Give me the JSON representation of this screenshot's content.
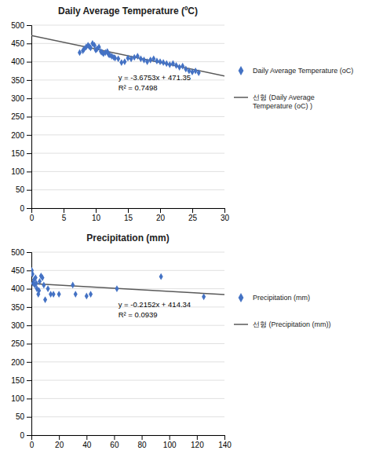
{
  "chart_data": [
    {
      "type": "scatter",
      "title": "Daily Average Temperature (ºC)",
      "xlim": [
        0,
        30
      ],
      "ylim": [
        0,
        500
      ],
      "xticks": [
        0,
        5,
        10,
        15,
        20,
        25,
        30
      ],
      "yticks": [
        0,
        50,
        100,
        150,
        200,
        250,
        300,
        350,
        400,
        450,
        500
      ],
      "grid": "y",
      "legend": "right",
      "annotations": [
        "y = -3.6753x + 471.35",
        "R² = 0.7498"
      ],
      "series": [
        {
          "name": "Daily Average Temperature (oC)",
          "type": "scatter",
          "marker": "diamond",
          "color": "#4472C4",
          "x": [
            7.5,
            8.0,
            8.2,
            8.5,
            8.8,
            9.0,
            9.2,
            9.5,
            9.8,
            10.0,
            10.2,
            10.5,
            10.8,
            11.0,
            11.2,
            11.5,
            11.8,
            12.0,
            12.2,
            12.5,
            12.8,
            13.0,
            13.5,
            14.0,
            14.5,
            15.0,
            15.5,
            16.0,
            16.5,
            17.0,
            17.5,
            18.0,
            18.5,
            19.0,
            19.5,
            20.0,
            20.5,
            21.0,
            21.5,
            22.0,
            22.5,
            23.0,
            23.5,
            24.0,
            24.5,
            25.0,
            25.5,
            26.0
          ],
          "values": [
            425,
            430,
            435,
            440,
            445,
            442,
            438,
            450,
            445,
            432,
            435,
            440,
            428,
            425,
            422,
            425,
            428,
            420,
            418,
            415,
            412,
            410,
            408,
            398,
            400,
            410,
            408,
            412,
            415,
            408,
            405,
            400,
            405,
            408,
            402,
            400,
            398,
            395,
            392,
            395,
            390,
            385,
            388,
            380,
            375,
            372,
            375,
            370
          ]
        },
        {
          "name": "선형 (Daily Average\nTemperature (oC) )",
          "type": "line",
          "line_style": "solid",
          "color": "#595959",
          "x": [
            0,
            30
          ],
          "values": [
            471.35,
            361.091
          ]
        }
      ]
    },
    {
      "type": "scatter",
      "title": "Precipitation (mm)",
      "xlim": [
        0,
        140
      ],
      "ylim": [
        0,
        500
      ],
      "xticks": [
        0,
        20,
        40,
        60,
        80,
        100,
        120,
        140
      ],
      "yticks": [
        0,
        50,
        100,
        150,
        200,
        250,
        300,
        350,
        400,
        450,
        500
      ],
      "grid": "y",
      "legend": "right",
      "annotations": [
        "y = -0.2152x + 414.34",
        "R² = 0.0939"
      ],
      "series": [
        {
          "name": "Precipitation (mm)",
          "type": "scatter",
          "marker": "diamond",
          "color": "#4472C4",
          "x": [
            0.3,
            0.8,
            1.2,
            2.0,
            2.5,
            3.0,
            3.5,
            4.0,
            5.0,
            5.5,
            6.0,
            7.0,
            8.0,
            9.0,
            10.0,
            12.0,
            14.0,
            16.0,
            20.0,
            30.0,
            32.0,
            40.0,
            43.0,
            62.0,
            94.0,
            125.0
          ],
          "values": [
            450,
            440,
            415,
            425,
            410,
            430,
            415,
            400,
            385,
            395,
            420,
            435,
            430,
            410,
            370,
            400,
            385,
            385,
            385,
            410,
            385,
            380,
            385,
            400,
            433,
            378
          ]
        },
        {
          "name": "선형 (Precipitation (mm))",
          "type": "line",
          "line_style": "solid",
          "color": "#595959",
          "x": [
            0,
            140
          ],
          "values": [
            414.34,
            384.212
          ]
        }
      ]
    }
  ]
}
